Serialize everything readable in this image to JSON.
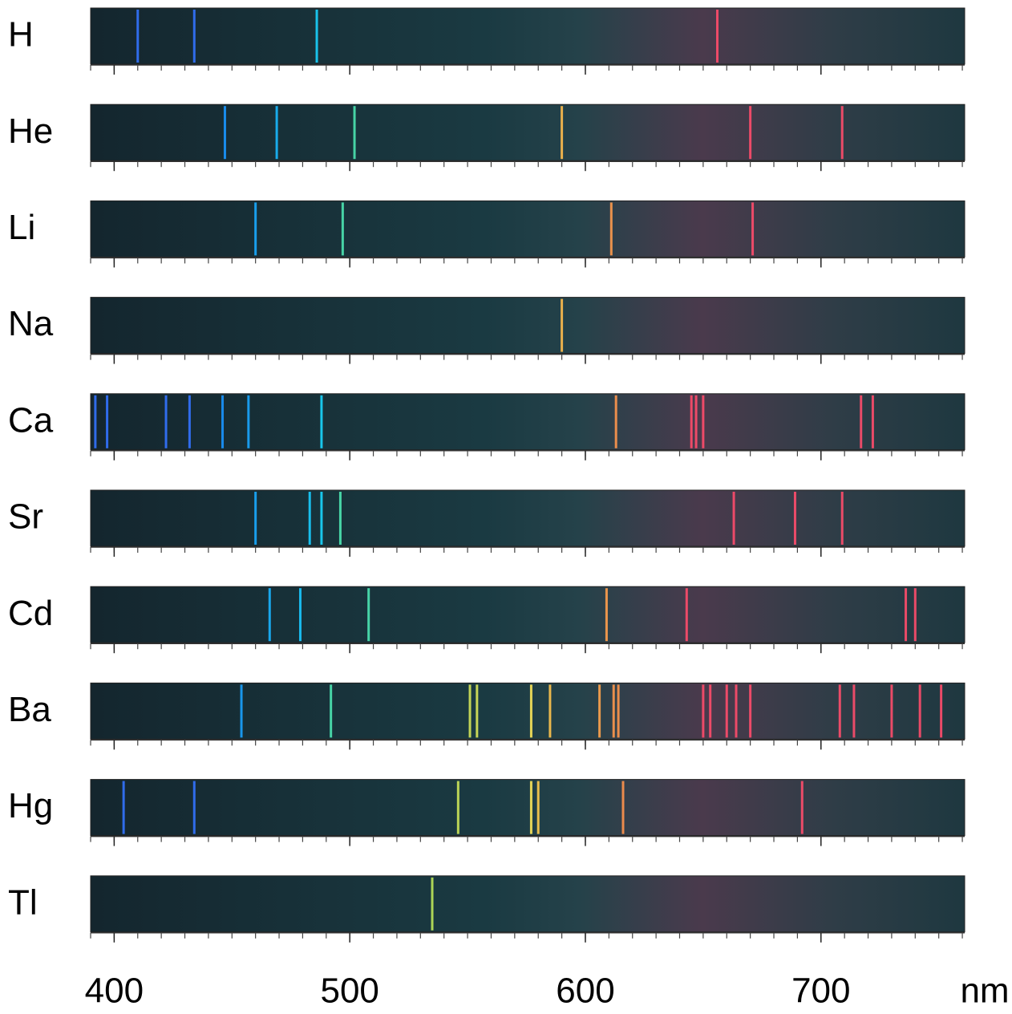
{
  "chart_data": {
    "type": "spectra",
    "xlabel": "nm",
    "xlim": [
      390,
      761
    ],
    "xticks": [
      400,
      500,
      600,
      700
    ],
    "xticks_minor": [
      390,
      400,
      410,
      420,
      430,
      440,
      450,
      460,
      470,
      480,
      490,
      500,
      510,
      520,
      530,
      540,
      550,
      560,
      570,
      580,
      590,
      600,
      610,
      620,
      630,
      640,
      650,
      660,
      670,
      680,
      690,
      700,
      710,
      720,
      730,
      740,
      750,
      760
    ],
    "series": [
      {
        "name": "H",
        "values": [
          410,
          434,
          486,
          656
        ]
      },
      {
        "name": "He",
        "values": [
          447,
          469,
          502,
          590,
          670,
          709
        ]
      },
      {
        "name": "Li",
        "values": [
          460,
          497,
          611,
          671
        ]
      },
      {
        "name": "Na",
        "values": [
          590
        ]
      },
      {
        "name": "Ca",
        "values": [
          392,
          397,
          422,
          432,
          446,
          457,
          488,
          613,
          645,
          647,
          650,
          717,
          722
        ]
      },
      {
        "name": "Sr",
        "values": [
          460,
          483,
          488,
          496,
          663,
          689,
          709
        ]
      },
      {
        "name": "Cd",
        "values": [
          466,
          479,
          508,
          609,
          643,
          736,
          740
        ]
      },
      {
        "name": "Ba",
        "values": [
          454,
          492,
          551,
          554,
          577,
          585,
          606,
          612,
          614,
          650,
          653,
          660,
          664,
          670,
          708,
          714,
          730,
          742,
          751
        ]
      },
      {
        "name": "Hg",
        "values": [
          404,
          434,
          546,
          577,
          580,
          616,
          692
        ]
      },
      {
        "name": "Tl",
        "values": [
          535
        ]
      }
    ]
  }
}
